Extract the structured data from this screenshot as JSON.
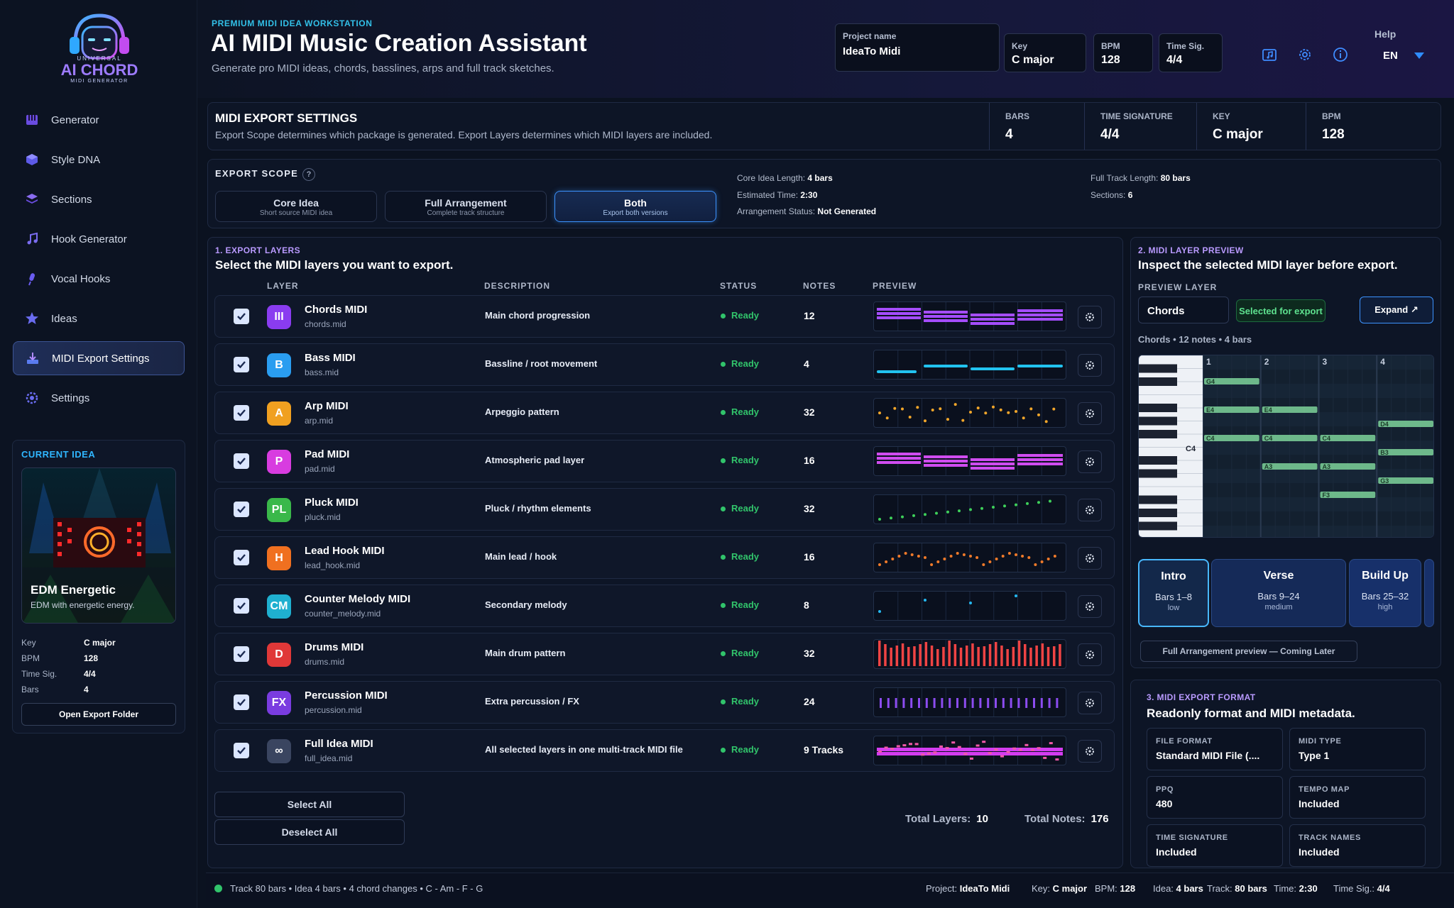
{
  "sidebar": {
    "logo": {
      "line1": "UNIVERSAL",
      "line2": "AI CHORD",
      "line3": "MIDI GENERATOR"
    },
    "items": [
      {
        "label": "Generator",
        "icon": "piano-icon"
      },
      {
        "label": "Style DNA",
        "icon": "cube-icon"
      },
      {
        "label": "Sections",
        "icon": "layers-icon"
      },
      {
        "label": "Hook Generator",
        "icon": "music-note-icon"
      },
      {
        "label": "Vocal Hooks",
        "icon": "microphone-icon"
      },
      {
        "label": "Ideas",
        "icon": "star-icon"
      },
      {
        "label": "MIDI Export Settings",
        "icon": "download-icon",
        "active": true
      },
      {
        "label": "Settings",
        "icon": "gear-icon"
      }
    ],
    "current_idea": {
      "heading": "CURRENT IDEA",
      "title": "EDM Energetic",
      "subtitle": "EDM with energetic energy.",
      "rows": [
        {
          "label": "Key",
          "value": "C major"
        },
        {
          "label": "BPM",
          "value": "128"
        },
        {
          "label": "Time Sig.",
          "value": "4/4"
        },
        {
          "label": "Bars",
          "value": "4"
        }
      ],
      "button": "Open Export Folder"
    }
  },
  "header": {
    "eyebrow": "PREMIUM MIDI IDEA WORKSTATION",
    "title": "AI MIDI Music Creation Assistant",
    "subtitle": "Generate pro MIDI ideas, chords, basslines, arps and full track sketches.",
    "project_label": "Project name",
    "project_value": "IdeaTo Midi",
    "key_label": "Key",
    "key_value": "C major",
    "bpm_label": "BPM",
    "bpm_value": "128",
    "ts_label": "Time Sig.",
    "ts_value": "4/4",
    "help": "Help",
    "lang": "EN"
  },
  "export_settings": {
    "title": "MIDI EXPORT SETTINGS",
    "subtitle": "Export Scope determines which package is generated. Export Layers determines which MIDI layers are included.",
    "stats": [
      {
        "label": "BARS",
        "value": "4"
      },
      {
        "label": "TIME SIGNATURE",
        "value": "4/4"
      },
      {
        "label": "KEY",
        "value": "C major"
      },
      {
        "label": "BPM",
        "value": "128"
      }
    ]
  },
  "scope": {
    "label": "EXPORT SCOPE",
    "help": "?",
    "options": [
      {
        "title": "Core Idea",
        "sub": "Short source MIDI idea"
      },
      {
        "title": "Full Arrangement",
        "sub": "Complete track structure"
      },
      {
        "title": "Both",
        "sub": "Export both versions",
        "active": true
      }
    ],
    "info_left": [
      {
        "label": "Core Idea Length:",
        "value": "4 bars"
      },
      {
        "label": "Estimated Time:",
        "value": "2:30"
      },
      {
        "label": "Arrangement Status:",
        "value": "Not Generated"
      }
    ],
    "info_right": [
      {
        "label": "Full Track Length:",
        "value": "80 bars"
      },
      {
        "label": "Sections:",
        "value": "6"
      }
    ]
  },
  "layers": {
    "eyebrow": "1. EXPORT LAYERS",
    "title": "Select the MIDI layers you want to export.",
    "columns": [
      "LAYER",
      "DESCRIPTION",
      "STATUS",
      "NOTES",
      "PREVIEW"
    ],
    "rows": [
      {
        "badge": "III",
        "name": "Chords MIDI",
        "file": "chords.mid",
        "desc": "Main chord progression",
        "status": "Ready",
        "notes": "12",
        "color": "#8a3cf0",
        "preview": "blocks",
        "pcolor": "#a54dff"
      },
      {
        "badge": "B",
        "name": "Bass MIDI",
        "file": "bass.mid",
        "desc": "Bassline / root movement",
        "status": "Ready",
        "notes": "4",
        "color": "#2a9df0",
        "preview": "bass",
        "pcolor": "#22c3f0"
      },
      {
        "badge": "A",
        "name": "Arp MIDI",
        "file": "arp.mid",
        "desc": "Arpeggio pattern",
        "status": "Ready",
        "notes": "32",
        "color": "#f0a020",
        "preview": "dots",
        "pcolor": "#f2a62a"
      },
      {
        "badge": "P",
        "name": "Pad MIDI",
        "file": "pad.mid",
        "desc": "Atmospheric pad layer",
        "status": "Ready",
        "notes": "16",
        "color": "#d83ce0",
        "preview": "blocks",
        "pcolor": "#d04cf0"
      },
      {
        "badge": "PL",
        "name": "Pluck MIDI",
        "file": "pluck.mid",
        "desc": "Pluck / rhythm elements",
        "status": "Ready",
        "notes": "32",
        "color": "#3ab84a",
        "preview": "rising",
        "pcolor": "#3ed05a"
      },
      {
        "badge": "H",
        "name": "Lead Hook MIDI",
        "file": "lead_hook.mid",
        "desc": "Main lead / hook",
        "status": "Ready",
        "notes": "16",
        "color": "#f07020",
        "preview": "lead",
        "pcolor": "#f07a2a"
      },
      {
        "badge": "CM",
        "name": "Counter Melody MIDI",
        "file": "counter_melody.mid",
        "desc": "Secondary melody",
        "status": "Ready",
        "notes": "8",
        "color": "#1fb0d0",
        "preview": "sparse",
        "pcolor": "#24b8f0"
      },
      {
        "badge": "D",
        "name": "Drums MIDI",
        "file": "drums.mid",
        "desc": "Main drum pattern",
        "status": "Ready",
        "notes": "32",
        "color": "#e03838",
        "preview": "drums",
        "pcolor": "#f04444"
      },
      {
        "badge": "FX",
        "name": "Percussion MIDI",
        "file": "percussion.mid",
        "desc": "Extra percussion / FX",
        "status": "Ready",
        "notes": "24",
        "color": "#7a3ce0",
        "preview": "perc",
        "pcolor": "#8c4cf0"
      },
      {
        "badge": "∞",
        "name": "Full Idea MIDI",
        "file": "full_idea.mid",
        "desc": "All selected layers in one multi-track MIDI file",
        "status": "Ready",
        "notes": "9 Tracks",
        "color": "#3a4560",
        "preview": "full",
        "pcolor": "#d43cf0"
      }
    ],
    "select_all": "Select All",
    "deselect_all": "Deselect All",
    "total_layers_label": "Total Layers:",
    "total_layers": "10",
    "total_notes_label": "Total Notes:",
    "total_notes": "176"
  },
  "preview": {
    "eyebrow": "2. MIDI LAYER PREVIEW",
    "title": "Inspect the selected MIDI layer before export.",
    "label": "PREVIEW LAYER",
    "selected": "Chords",
    "tag": "Selected for export",
    "expand": "Expand ↗",
    "info": "Chords • 12 notes • 4 bars",
    "bars": [
      "1",
      "2",
      "3",
      "4"
    ],
    "c4": "C4",
    "notes": [
      {
        "label": "G4",
        "bar_start": 1,
        "length": 1,
        "row": 1
      },
      {
        "label": "E4",
        "bar_start": 1,
        "length": 1,
        "row": 3
      },
      {
        "label": "E4",
        "bar_start": 2,
        "length": 1,
        "row": 3
      },
      {
        "label": "C4",
        "bar_start": 1,
        "length": 1,
        "row": 5
      },
      {
        "label": "C4",
        "bar_start": 2,
        "length": 1,
        "row": 5
      },
      {
        "label": "C4",
        "bar_start": 3,
        "length": 1,
        "row": 5
      },
      {
        "label": "A3",
        "bar_start": 2,
        "length": 1,
        "row": 7
      },
      {
        "label": "A3",
        "bar_start": 3,
        "length": 1,
        "row": 7
      },
      {
        "label": "F3",
        "bar_start": 3,
        "length": 1,
        "row": 9
      },
      {
        "label": "D4",
        "bar_start": 4,
        "length": 1,
        "row": 4
      },
      {
        "label": "B3",
        "bar_start": 4,
        "length": 1,
        "row": 6
      },
      {
        "label": "G3",
        "bar_start": 4,
        "length": 1,
        "row": 8
      }
    ],
    "sections": [
      {
        "name": "Intro",
        "bars": "Bars 1–8",
        "energy": "low",
        "active": true
      },
      {
        "name": "Verse",
        "bars": "Bars 9–24",
        "energy": "medium"
      },
      {
        "name": "Build Up",
        "bars": "Bars 25–32",
        "energy": "high"
      }
    ],
    "coming": "Full Arrangement preview — Coming Later"
  },
  "format": {
    "eyebrow": "3. MIDI EXPORT FORMAT",
    "title": "Readonly format and MIDI metadata.",
    "fields": [
      {
        "label": "FILE FORMAT",
        "value": "Standard MIDI File (...."
      },
      {
        "label": "MIDI TYPE",
        "value": "Type 1"
      },
      {
        "label": "PPQ",
        "value": "480"
      },
      {
        "label": "TEMPO MAP",
        "value": "Included"
      },
      {
        "label": "TIME SIGNATURE",
        "value": "Included"
      },
      {
        "label": "TRACK NAMES",
        "value": "Included"
      }
    ]
  },
  "footer": {
    "left": "Track 80 bars • Idea 4 bars • 4 chord changes • C - Am - F - G",
    "items": [
      {
        "label": "Project:",
        "value": "IdeaTo Midi"
      },
      {
        "label": "Key:",
        "value": "C major"
      },
      {
        "label": "BPM:",
        "value": "128"
      },
      {
        "label": "Idea:",
        "value": "4 bars"
      },
      {
        "label": "Track:",
        "value": "80 bars"
      },
      {
        "label": "Time:",
        "value": "2:30"
      },
      {
        "label": "Time Sig.:",
        "value": "4/4"
      }
    ]
  }
}
